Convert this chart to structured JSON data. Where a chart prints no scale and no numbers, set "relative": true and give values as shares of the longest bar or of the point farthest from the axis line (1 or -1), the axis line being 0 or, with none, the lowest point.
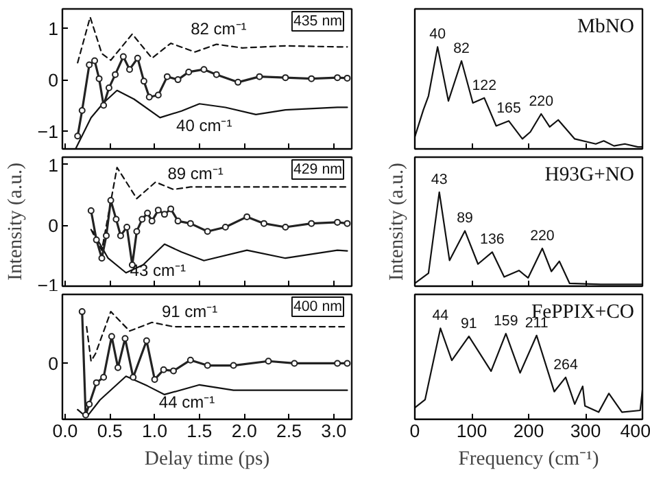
{
  "chart_data": [
    {
      "type": "line",
      "tick_labels": "y",
      "xlim": [
        -0.03,
        3.2
      ],
      "ylim": [
        -1.35,
        1.38
      ],
      "xticks": [
        0,
        0.5,
        1,
        1.5,
        2,
        2.5,
        3
      ],
      "yticks": [
        -1,
        0,
        1
      ],
      "annotations": [
        "435 nm",
        "82 cm⁻¹",
        "40 cm⁻¹"
      ],
      "series": [
        {
          "type": "line",
          "marker": "circle",
          "color": "#222222",
          "x": [
            0.14,
            0.19,
            0.27,
            0.33,
            0.38,
            0.43,
            0.49,
            0.56,
            0.65,
            0.72,
            0.81,
            0.88,
            0.94,
            1.04,
            1.14,
            1.26,
            1.38,
            1.55,
            1.69,
            1.93,
            2.17,
            2.46,
            2.75,
            3.04,
            3.15
          ],
          "values": [
            -1.1,
            -0.6,
            0.29,
            0.37,
            0.02,
            -0.5,
            -0.16,
            0.1,
            0.45,
            0.2,
            0.42,
            -0.03,
            -0.34,
            -0.3,
            0.06,
            0,
            0.15,
            0.2,
            0.1,
            -0.05,
            0.06,
            0.04,
            0.02,
            0.04,
            0.03
          ]
        },
        {
          "type": "line",
          "line_style": "dashed",
          "color": "#111111",
          "x": [
            0.14,
            0.28,
            0.41,
            0.51,
            0.75,
            0.97,
            1.18,
            1.45,
            1.69,
            1.98,
            2.46,
            3.04,
            3.15
          ],
          "values": [
            0.33,
            1.22,
            0.51,
            0.38,
            0.89,
            0.42,
            0.71,
            0.54,
            0.69,
            0.62,
            0.66,
            0.64,
            0.64
          ]
        },
        {
          "type": "line",
          "color": "#111111",
          "x": [
            0.12,
            0.29,
            0.43,
            0.58,
            0.77,
            1.06,
            1.3,
            1.5,
            1.79,
            2.13,
            2.46,
            3.04,
            3.15
          ],
          "values": [
            -1.34,
            -0.74,
            -0.45,
            -0.21,
            -0.38,
            -0.74,
            -0.61,
            -0.47,
            -0.54,
            -0.68,
            -0.59,
            -0.54,
            -0.54
          ]
        }
      ]
    },
    {
      "type": "line",
      "tick_labels": "y",
      "xlim": [
        -0.03,
        3.2
      ],
      "ylim": [
        -1.0,
        1.12
      ],
      "ylabel": "Intensity (a.u.)",
      "xticks": [
        0,
        0.5,
        1,
        1.5,
        2,
        2.5,
        3
      ],
      "yticks": [
        -1,
        0,
        1
      ],
      "annotations": [
        "429 nm",
        "89 cm⁻¹",
        "43 cm⁻¹"
      ],
      "series": [
        {
          "type": "line",
          "marker": "circle",
          "color": "#222222",
          "x": [
            0.29,
            0.35,
            0.41,
            0.46,
            0.51,
            0.57,
            0.62,
            0.69,
            0.75,
            0.8,
            0.86,
            0.92,
            0.97,
            1.04,
            1.11,
            1.18,
            1.26,
            1.4,
            1.59,
            1.79,
            2.03,
            2.22,
            2.46,
            2.75,
            3.04,
            3.15
          ],
          "values": [
            0.24,
            -0.24,
            -0.54,
            -0.17,
            0.41,
            0.1,
            -0.17,
            -0.03,
            -0.65,
            -0.1,
            0.1,
            0.2,
            0.07,
            0.25,
            0.18,
            0.27,
            0.07,
            0.03,
            -0.1,
            -0.03,
            0.14,
            0.03,
            -0.03,
            0.03,
            0.05,
            0.03
          ]
        },
        {
          "type": "line",
          "line_style": "dashed",
          "color": "#111111",
          "x": [
            0.29,
            0.41,
            0.58,
            0.8,
            1.01,
            1.21,
            1.4,
            3.04,
            3.15
          ],
          "values": [
            -0.07,
            -0.41,
            0.95,
            0.44,
            0.71,
            0.59,
            0.63,
            0.63,
            0.63
          ]
        },
        {
          "type": "line",
          "color": "#111111",
          "x": [
            0.31,
            0.48,
            0.68,
            0.87,
            1.11,
            1.3,
            1.55,
            2.03,
            2.46,
            3.04,
            3.15
          ],
          "values": [
            -0.1,
            -0.54,
            -0.78,
            -0.65,
            -0.31,
            -0.44,
            -0.58,
            -0.41,
            -0.54,
            -0.41,
            -0.42
          ]
        }
      ]
    },
    {
      "type": "line",
      "relative": true,
      "tick_labels": "x",
      "xlim": [
        -0.03,
        3.2
      ],
      "xlabel": "Delay time (ps)",
      "xticks": [
        {
          "value": 0,
          "label": "0.0"
        },
        {
          "value": 0.5,
          "label": "0.5"
        },
        {
          "value": 1,
          "label": "1.0"
        },
        {
          "value": 1.5,
          "label": "1.5"
        },
        {
          "value": 2,
          "label": "2.0"
        },
        {
          "value": 2.5,
          "label": "2.5"
        },
        {
          "value": 3,
          "label": "3.0"
        }
      ],
      "annotations": [
        "400 nm",
        "91 cm⁻¹",
        "44 cm⁻¹",
        "0"
      ],
      "series": [
        {
          "type": "line",
          "marker": "circle",
          "color": "#222222",
          "x": [
            0.19,
            0.23,
            0.27,
            0.35,
            0.43,
            0.52,
            0.59,
            0.67,
            0.76,
            0.91,
            1.0,
            1.1,
            1.21,
            1.4,
            1.59,
            1.88,
            2.27,
            2.56,
            3.04,
            3.15
          ],
          "values": [
            1.0,
            0.04,
            0.14,
            0.34,
            0.39,
            0.77,
            0.48,
            0.75,
            0.39,
            0.73,
            0.37,
            0.46,
            0.45,
            0.55,
            0.5,
            0.5,
            0.54,
            0.52,
            0.52,
            0.52
          ]
        },
        {
          "type": "line",
          "line_style": "dashed",
          "color": "#111111",
          "x": [
            0.24,
            0.29,
            0.34,
            0.51,
            0.72,
            0.97,
            1.21,
            3.04,
            3.15
          ],
          "values": [
            0.86,
            0.54,
            0.61,
            1.0,
            0.82,
            0.9,
            0.86,
            0.86,
            0.86
          ]
        },
        {
          "type": "line",
          "color": "#111111",
          "x": [
            0.14,
            0.24,
            0.39,
            0.68,
            0.92,
            1.11,
            1.5,
            1.88,
            2.46,
            3.04,
            3.15
          ],
          "values": [
            0.09,
            0.02,
            0.18,
            0.4,
            0.31,
            0.23,
            0.32,
            0.27,
            0.27,
            0.27,
            0.27
          ]
        }
      ]
    },
    {
      "type": "line",
      "relative": true,
      "tick_labels": false,
      "xlim": [
        0,
        400
      ],
      "xticks": [
        0,
        100,
        200,
        300,
        400
      ],
      "annotations": [
        "MbNO",
        {
          "text": "40",
          "x": 40,
          "y": 1.0
        },
        {
          "text": "82",
          "x": 82,
          "y": 0.86
        },
        {
          "text": "122",
          "x": 122,
          "y": 0.49
        },
        {
          "text": "165",
          "x": 165,
          "y": 0.26
        },
        {
          "text": "220",
          "x": 222,
          "y": 0.33
        }
      ],
      "series": [
        {
          "color": "#111111",
          "x": [
            0,
            15,
            24,
            40,
            59,
            82,
            102,
            122,
            143,
            165,
            189,
            203,
            222,
            237,
            252,
            281,
            318,
            332,
            350,
            369,
            392,
            400
          ],
          "values": [
            0.1,
            0.37,
            0.51,
            1.0,
            0.46,
            0.86,
            0.44,
            0.49,
            0.21,
            0.26,
            0.08,
            0.15,
            0.33,
            0.2,
            0.27,
            0.08,
            0.03,
            0.06,
            0.01,
            0.03,
            0,
            0
          ]
        }
      ]
    },
    {
      "type": "line",
      "relative": true,
      "tick_labels": false,
      "xlim": [
        0,
        400
      ],
      "xticks": [
        0,
        100,
        200,
        300,
        400
      ],
      "ylabel": "Intensity (a.u.)",
      "annotations": [
        "H93G+NO",
        {
          "text": "43",
          "x": 43,
          "y": 1.0
        },
        {
          "text": "89",
          "x": 88,
          "y": 0.58
        },
        {
          "text": "136",
          "x": 136,
          "y": 0.35
        },
        {
          "text": "220",
          "x": 224,
          "y": 0.39
        }
      ],
      "series": [
        {
          "color": "#111111",
          "x": [
            0,
            24,
            43,
            61,
            88,
            111,
            136,
            157,
            183,
            199,
            224,
            240,
            254,
            272,
            327,
            400
          ],
          "values": [
            0.01,
            0.12,
            1.0,
            0.26,
            0.58,
            0.22,
            0.35,
            0.08,
            0.15,
            0.07,
            0.39,
            0.14,
            0.25,
            0.01,
            0,
            0
          ]
        }
      ]
    },
    {
      "type": "line",
      "relative": true,
      "tick_labels": "x",
      "xlim": [
        0,
        400
      ],
      "xticks": [
        0,
        100,
        200,
        300,
        400
      ],
      "xlabel": "Frequency (cm⁻¹)",
      "annotations": [
        "FePPIX+CO",
        {
          "text": "44",
          "x": 45,
          "y": 1.0
        },
        {
          "text": "91",
          "x": 95,
          "y": 0.91
        },
        {
          "text": "159",
          "x": 160,
          "y": 0.94
        },
        {
          "text": "211",
          "x": 214,
          "y": 0.92
        },
        {
          "text": "264",
          "x": 265,
          "y": 0.45
        }
      ],
      "series": [
        {
          "color": "#111111",
          "x": [
            0,
            18,
            45,
            65,
            95,
            134,
            160,
            185,
            214,
            245,
            265,
            281,
            295,
            299,
            323,
            341,
            364,
            396,
            400
          ],
          "values": [
            0.11,
            0.2,
            1.0,
            0.64,
            0.91,
            0.52,
            0.94,
            0.5,
            0.92,
            0.29,
            0.45,
            0.15,
            0.35,
            0.13,
            0.06,
            0.27,
            0.06,
            0.08,
            0.31
          ]
        }
      ]
    }
  ]
}
